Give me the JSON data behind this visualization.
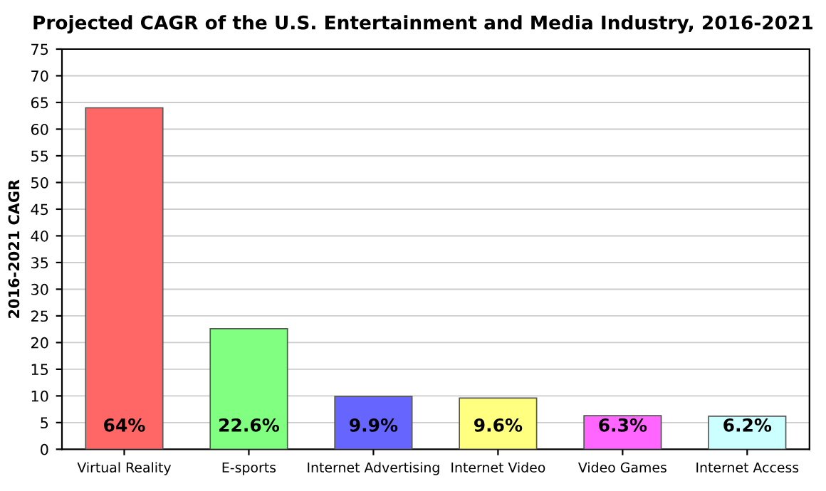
{
  "chart_data": {
    "type": "bar",
    "title": "Projected CAGR of the U.S. Entertainment and Media Industry, 2016-2021",
    "ylabel": "2016-2021 CAGR",
    "categories": [
      "Virtual Reality",
      "E-sports",
      "Internet Advertising",
      "Internet Video",
      "Video Games",
      "Internet Access"
    ],
    "values": [
      64,
      22.6,
      9.9,
      9.6,
      6.3,
      6.2
    ],
    "value_labels": [
      "64%",
      "22.6%",
      "9.9%",
      "9.6%",
      "6.3%",
      "6.2%"
    ],
    "colors": [
      "#ff6666",
      "#80ff80",
      "#6666ff",
      "#ffff80",
      "#ff66ff",
      "#ccffff"
    ],
    "ylim": [
      0,
      75
    ],
    "yticks": [
      0,
      5,
      10,
      15,
      20,
      25,
      30,
      35,
      40,
      45,
      50,
      55,
      60,
      65,
      70,
      75
    ],
    "grid": "y",
    "legend": false
  }
}
